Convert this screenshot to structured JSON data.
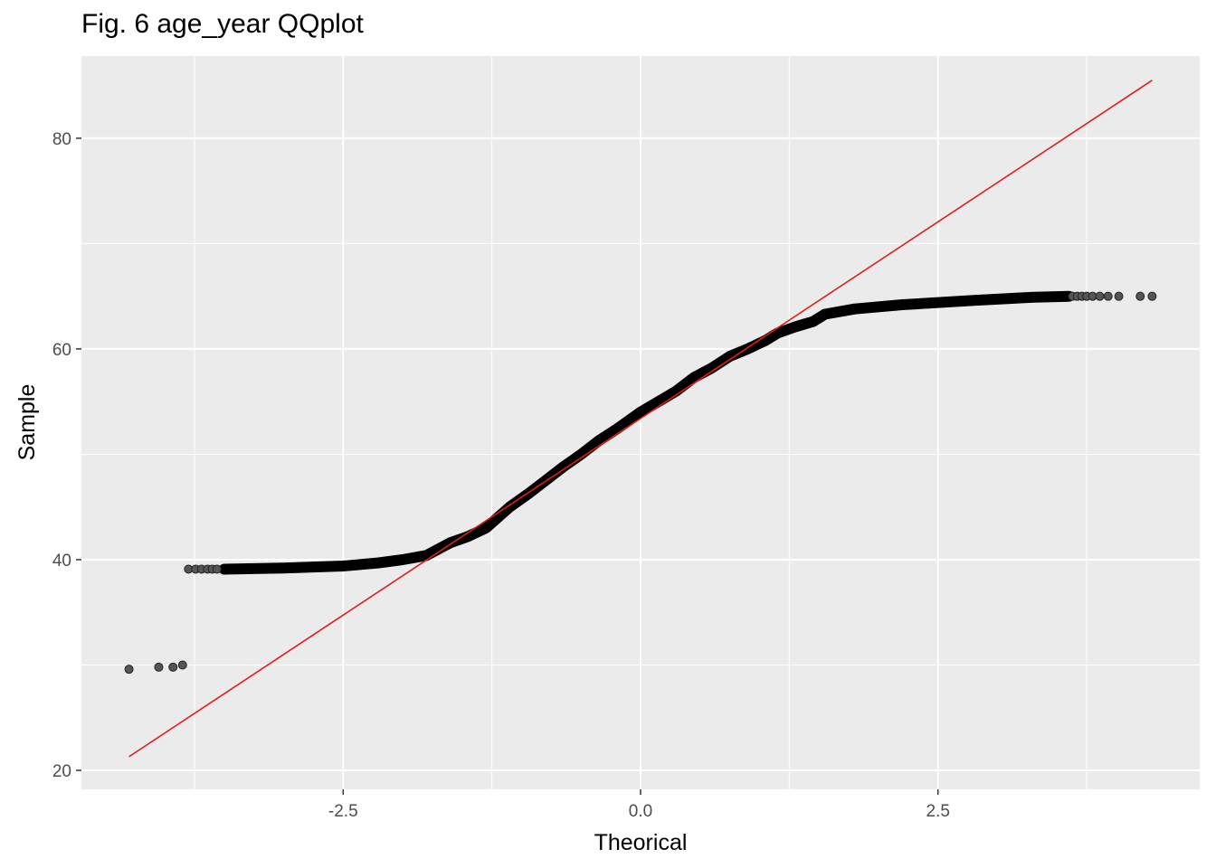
{
  "chart_data": {
    "type": "scatter",
    "title": "Fig. 6 age_year QQplot",
    "xlabel": "Theorical",
    "ylabel": "Sample",
    "xlim": [
      -4.7,
      4.7
    ],
    "ylim": [
      18.2,
      87.8
    ],
    "x_ticks": [
      -2.5,
      0,
      2.5
    ],
    "x_tick_labels": [
      "-2.5",
      "0.0",
      "2.5"
    ],
    "x_minor_ticks": [
      -3.75,
      -1.25,
      1.25,
      3.75
    ],
    "y_ticks": [
      20,
      40,
      60,
      80
    ],
    "y_tick_labels": [
      "20",
      "40",
      "60",
      "80"
    ],
    "y_minor_ticks": [
      30,
      50,
      70
    ],
    "grid": true,
    "legend": "none",
    "colors": {
      "panel": "#ebebeb",
      "grid": "#ffffff",
      "points": "#000000",
      "reference_line": "#e41a1c"
    },
    "outlier_points": [
      {
        "x": -4.3,
        "y": 29.6
      },
      {
        "x": -4.05,
        "y": 29.8
      },
      {
        "x": -3.93,
        "y": 29.8
      },
      {
        "x": -3.85,
        "y": 30.0
      },
      {
        "x": -3.8,
        "y": 39.1
      },
      {
        "x": -3.74,
        "y": 39.1
      },
      {
        "x": -3.69,
        "y": 39.1
      },
      {
        "x": -3.64,
        "y": 39.1
      },
      {
        "x": -3.6,
        "y": 39.1
      },
      {
        "x": -3.56,
        "y": 39.1
      },
      {
        "x": 3.63,
        "y": 65.0
      },
      {
        "x": 3.67,
        "y": 65.0
      },
      {
        "x": 3.71,
        "y": 65.0
      },
      {
        "x": 3.75,
        "y": 65.0
      },
      {
        "x": 3.8,
        "y": 65.0
      },
      {
        "x": 3.86,
        "y": 65.0
      },
      {
        "x": 3.93,
        "y": 65.0
      },
      {
        "x": 4.02,
        "y": 65.0
      },
      {
        "x": 4.2,
        "y": 65.0
      },
      {
        "x": 4.3,
        "y": 65.0
      }
    ],
    "sample_curve": [
      {
        "x": -3.5,
        "y": 39.1
      },
      {
        "x": -3.0,
        "y": 39.2
      },
      {
        "x": -2.5,
        "y": 39.4
      },
      {
        "x": -2.2,
        "y": 39.7
      },
      {
        "x": -2.0,
        "y": 40.0
      },
      {
        "x": -1.8,
        "y": 40.4
      },
      {
        "x": -1.7,
        "y": 41.0
      },
      {
        "x": -1.6,
        "y": 41.6
      },
      {
        "x": -1.45,
        "y": 42.2
      },
      {
        "x": -1.3,
        "y": 43.0
      },
      {
        "x": -1.2,
        "y": 44.0
      },
      {
        "x": -1.1,
        "y": 45.0
      },
      {
        "x": -0.95,
        "y": 46.2
      },
      {
        "x": -0.8,
        "y": 47.5
      },
      {
        "x": -0.65,
        "y": 48.8
      },
      {
        "x": -0.5,
        "y": 50.0
      },
      {
        "x": -0.35,
        "y": 51.3
      },
      {
        "x": -0.2,
        "y": 52.4
      },
      {
        "x": -0.1,
        "y": 53.2
      },
      {
        "x": 0.0,
        "y": 54.0
      },
      {
        "x": 0.15,
        "y": 55.0
      },
      {
        "x": 0.3,
        "y": 56.0
      },
      {
        "x": 0.45,
        "y": 57.3
      },
      {
        "x": 0.6,
        "y": 58.2
      },
      {
        "x": 0.75,
        "y": 59.3
      },
      {
        "x": 0.9,
        "y": 60.0
      },
      {
        "x": 1.05,
        "y": 60.8
      },
      {
        "x": 1.15,
        "y": 61.5
      },
      {
        "x": 1.3,
        "y": 62.1
      },
      {
        "x": 1.45,
        "y": 62.6
      },
      {
        "x": 1.55,
        "y": 63.3
      },
      {
        "x": 1.8,
        "y": 63.8
      },
      {
        "x": 2.2,
        "y": 64.2
      },
      {
        "x": 2.8,
        "y": 64.6
      },
      {
        "x": 3.3,
        "y": 64.9
      },
      {
        "x": 3.6,
        "y": 65.0
      }
    ],
    "reference_line": {
      "x": [
        -4.3,
        4.3
      ],
      "y": [
        21.3,
        85.5
      ]
    }
  }
}
